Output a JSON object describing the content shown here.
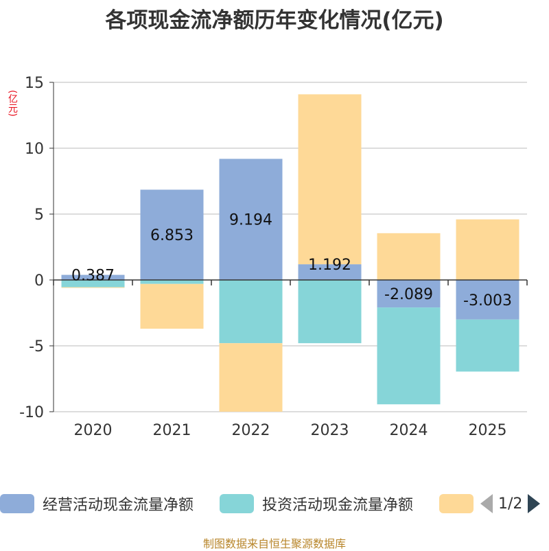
{
  "chart_data": {
    "type": "bar",
    "stacked": true,
    "title": "各项现金流净额历年变化情况(亿元)",
    "ylabel": "(亿元)",
    "categories": [
      "2020",
      "2021",
      "2022",
      "2023",
      "2024",
      "2025"
    ],
    "ylim": [
      -10,
      15
    ],
    "yticks": [
      15,
      10,
      5,
      0,
      -5,
      -10
    ],
    "series": [
      {
        "name": "经营活动现金流量净额",
        "color": "#8eacd9",
        "values": [
          0.387,
          6.853,
          9.194,
          1.192,
          -2.089,
          -3.003
        ],
        "labels": [
          "0.387",
          "6.853",
          "9.194",
          "1.192",
          "-2.089",
          "-3.003"
        ]
      },
      {
        "name": "投资活动现金流量净额",
        "color": "#86d5d8",
        "values": [
          -0.55,
          -0.3,
          -4.8,
          -4.8,
          -7.35,
          -3.95
        ]
      },
      {
        "name": "",
        "color": "#fed997",
        "values": [
          -0.05,
          -3.4,
          -5.2,
          12.9,
          3.55,
          4.6
        ]
      }
    ],
    "legend": {
      "position": "bottom",
      "page": "1/2"
    }
  },
  "source": "制图数据来自恒生聚源数据库"
}
